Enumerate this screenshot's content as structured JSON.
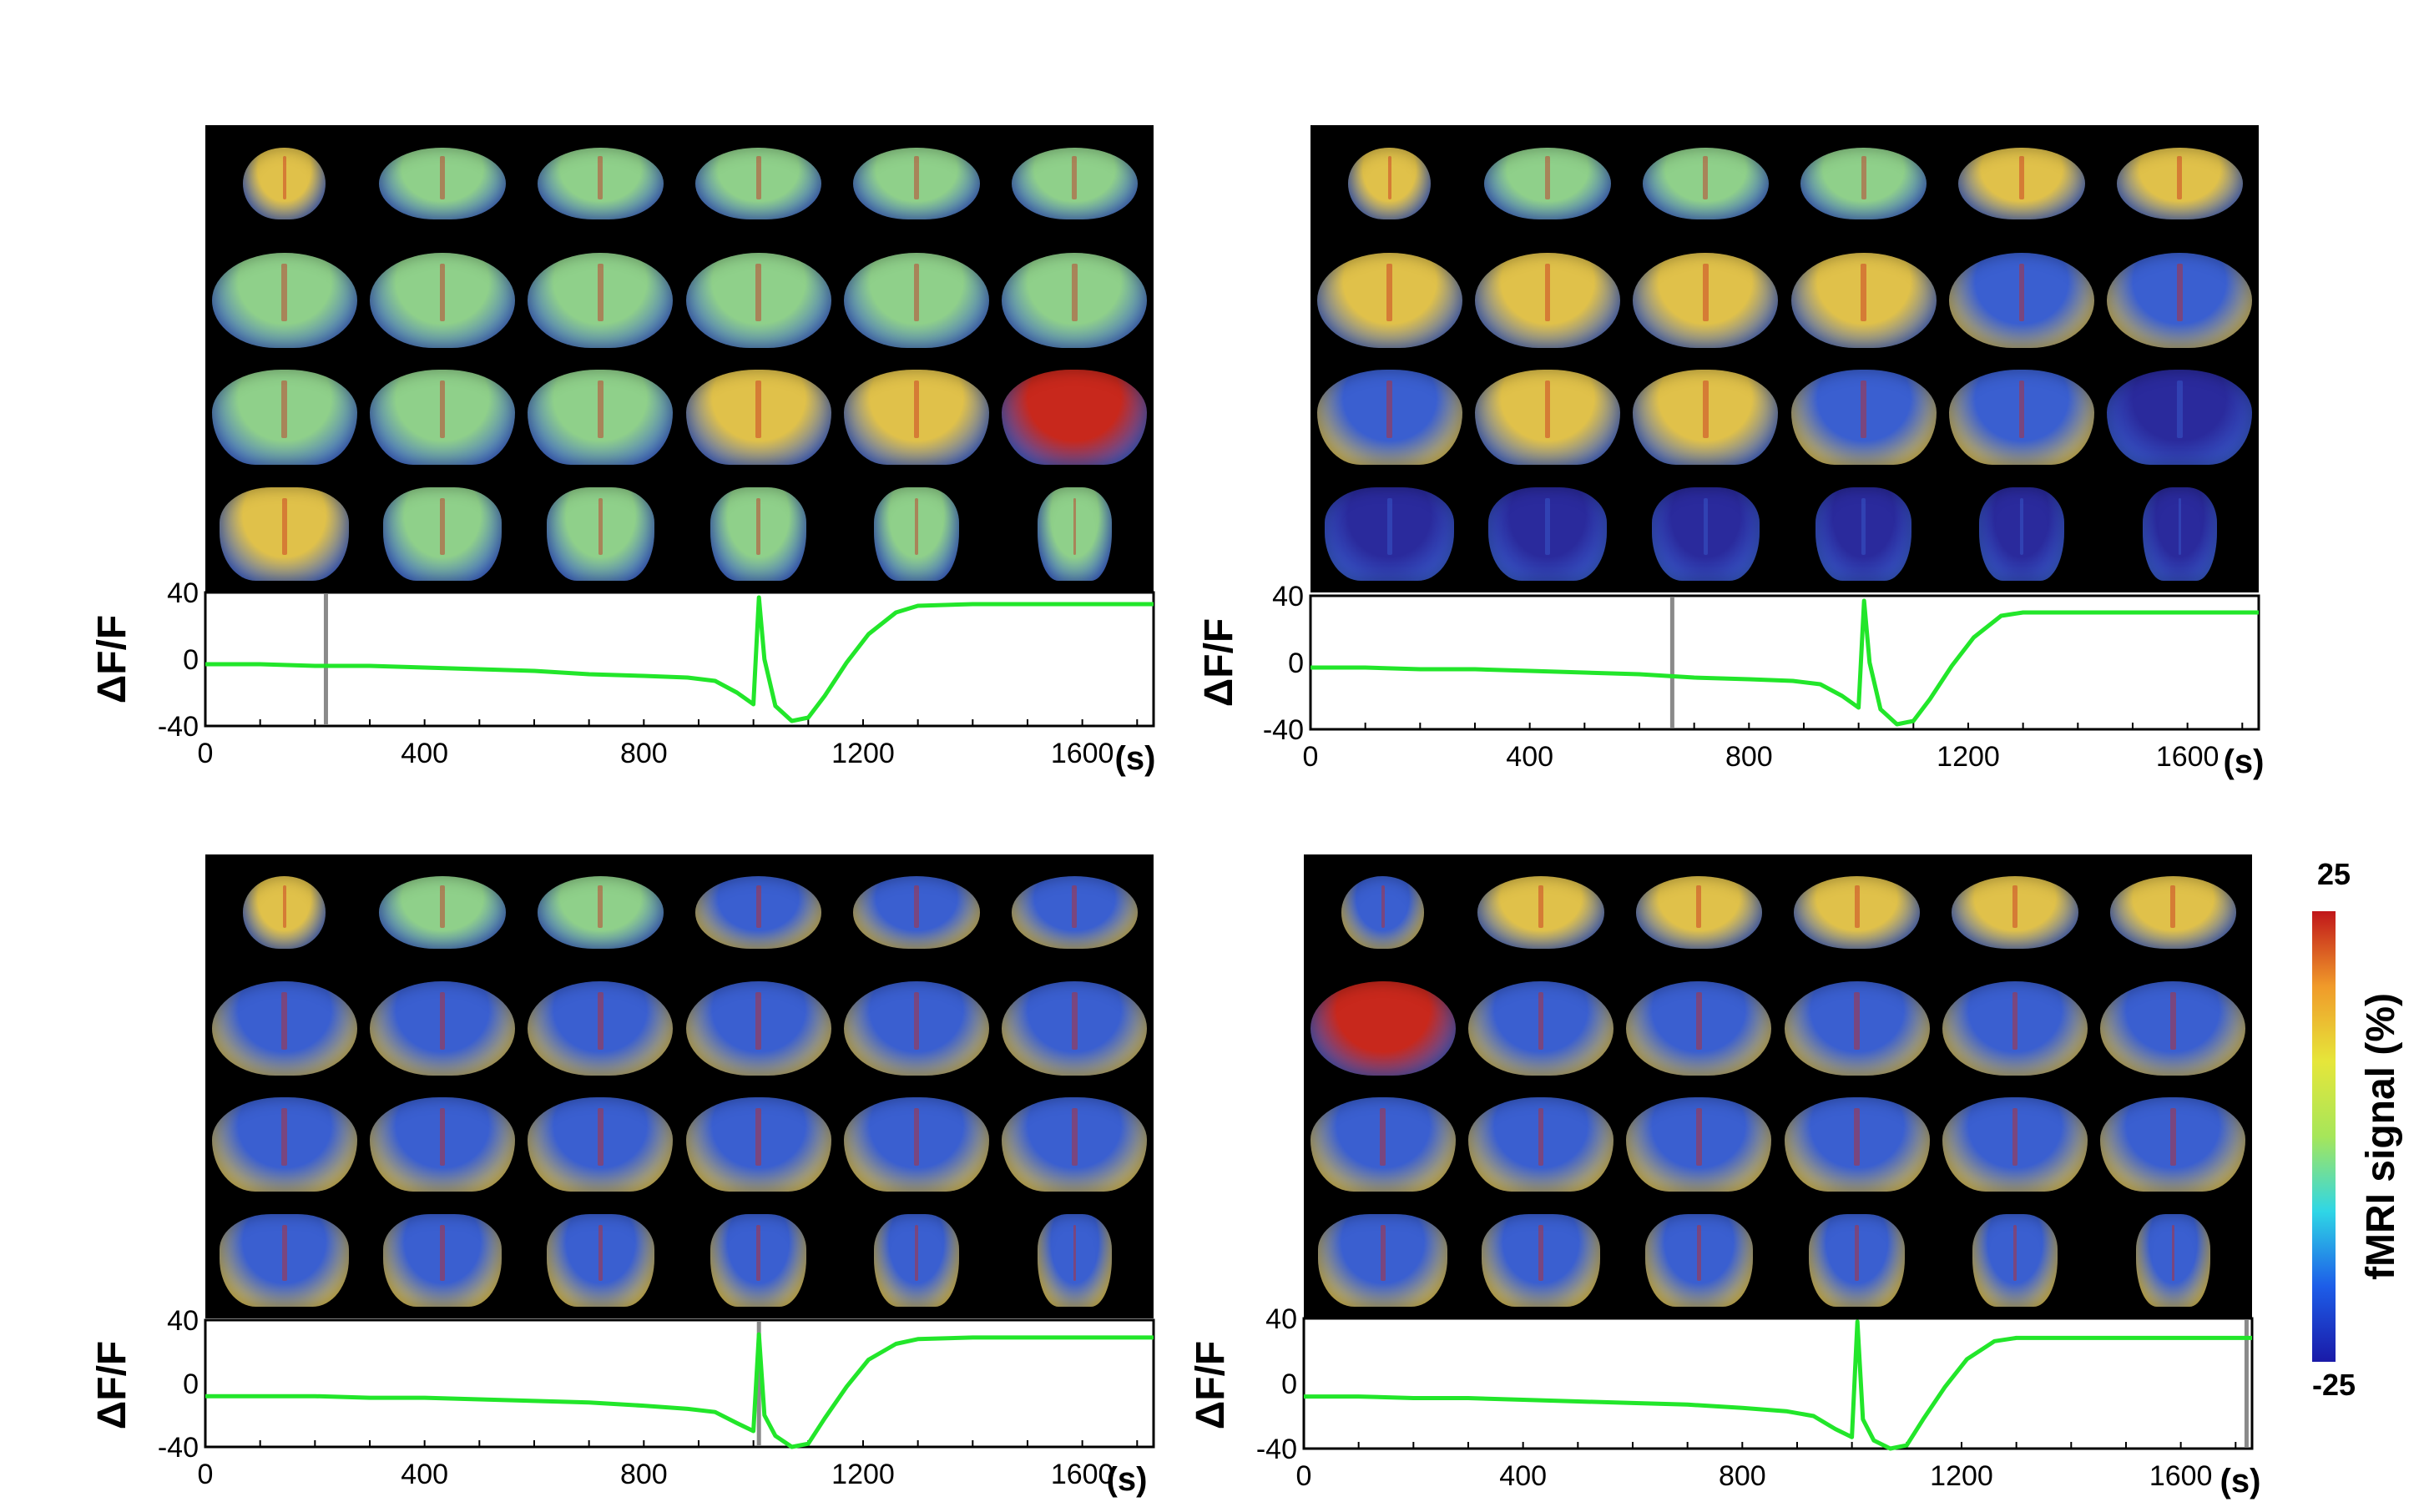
{
  "colorbar": {
    "max_label": "25",
    "min_label": "-25",
    "label": "fMRI signal (%)",
    "min": -25,
    "max": 25,
    "colors": [
      "#1a1aa8",
      "#1d5de8",
      "#2fd6e6",
      "#a6e65a",
      "#e6e63a",
      "#f09a2a",
      "#c0161a"
    ]
  },
  "brain_colors": {
    "background": "#000000",
    "warm": "#e0c14a",
    "neutral": "#8fd08a",
    "cool": "#3a5fd0",
    "deep": "#2a2a9c",
    "hot": "#c8281c"
  },
  "trace_colors": {
    "line": "#22e62a",
    "marker": "#8a8a8a",
    "frame": "#000000"
  },
  "chart_data": [
    {
      "type": "line",
      "panel": "top-left",
      "ylabel": "ΔF/F",
      "xunit": "(s)",
      "xlim": [
        0,
        1730
      ],
      "ylim": [
        -40,
        40
      ],
      "xticks": [
        0,
        400,
        800,
        1200,
        1600
      ],
      "yticks": [
        40,
        0,
        -40
      ],
      "marker_x": 220,
      "brain_slice_tint": [
        [
          "warm",
          "neutral",
          "neutral",
          "neutral",
          "neutral",
          "neutral"
        ],
        [
          "neutral",
          "neutral",
          "neutral",
          "neutral",
          "neutral",
          "neutral"
        ],
        [
          "neutral",
          "neutral",
          "neutral",
          "warm",
          "warm",
          "hot"
        ],
        [
          "warm",
          "neutral",
          "neutral",
          "neutral",
          "neutral",
          "neutral"
        ]
      ],
      "series": [
        {
          "x": [
            0,
            100,
            200,
            300,
            400,
            500,
            600,
            700,
            800,
            880,
            930,
            970,
            1000,
            1010,
            1020,
            1040,
            1070,
            1100,
            1130,
            1170,
            1210,
            1260,
            1300,
            1400,
            1500,
            1600,
            1730
          ],
          "y": [
            -3,
            -3,
            -4,
            -4,
            -5,
            -6,
            -7,
            -9,
            -10,
            -11,
            -13,
            -20,
            -27,
            37,
            0,
            -28,
            -37,
            -35,
            -22,
            -2,
            15,
            28,
            32,
            33,
            33,
            33,
            33
          ]
        }
      ]
    },
    {
      "type": "line",
      "panel": "top-right",
      "ylabel": "ΔF/F",
      "xunit": "(s)",
      "xlim": [
        0,
        1730
      ],
      "ylim": [
        -40,
        40
      ],
      "xticks": [
        0,
        400,
        800,
        1200,
        1600
      ],
      "yticks": [
        40,
        0,
        -40
      ],
      "marker_x": 660,
      "brain_slice_tint": [
        [
          "warm",
          "neutral",
          "neutral",
          "neutral",
          "warm",
          "warm"
        ],
        [
          "warm",
          "warm",
          "warm",
          "warm",
          "cool",
          "cool"
        ],
        [
          "cool",
          "warm",
          "warm",
          "cool",
          "cool",
          "deep"
        ],
        [
          "deep",
          "deep",
          "deep",
          "deep",
          "deep",
          "deep"
        ]
      ],
      "series": [
        {
          "x": [
            0,
            100,
            200,
            300,
            400,
            500,
            600,
            700,
            800,
            880,
            930,
            970,
            1000,
            1010,
            1020,
            1040,
            1070,
            1100,
            1130,
            1170,
            1210,
            1260,
            1300,
            1400,
            1500,
            1600,
            1730
          ],
          "y": [
            -3,
            -3,
            -4,
            -4,
            -5,
            -6,
            -7,
            -9,
            -10,
            -11,
            -13,
            -20,
            -27,
            37,
            0,
            -28,
            -37,
            -35,
            -22,
            -2,
            15,
            28,
            30,
            30,
            30,
            30,
            30
          ]
        }
      ]
    },
    {
      "type": "line",
      "panel": "bottom-left",
      "ylabel": "ΔF/F",
      "xunit": "(s)",
      "xlim": [
        0,
        1730
      ],
      "ylim": [
        -40,
        40
      ],
      "xticks": [
        0,
        400,
        800,
        1200,
        1600
      ],
      "yticks": [
        40,
        0,
        -40
      ],
      "marker_x": 1010,
      "brain_slice_tint": [
        [
          "warm",
          "neutral",
          "neutral",
          "cool",
          "cool",
          "cool"
        ],
        [
          "cool",
          "cool",
          "cool",
          "cool",
          "cool",
          "cool"
        ],
        [
          "cool",
          "cool",
          "cool",
          "cool",
          "cool",
          "cool"
        ],
        [
          "cool",
          "cool",
          "cool",
          "cool",
          "cool",
          "cool"
        ]
      ],
      "series": [
        {
          "x": [
            0,
            100,
            200,
            300,
            400,
            500,
            600,
            700,
            800,
            880,
            930,
            970,
            1000,
            1010,
            1020,
            1040,
            1070,
            1100,
            1130,
            1170,
            1210,
            1260,
            1300,
            1400,
            1500,
            1600,
            1730
          ],
          "y": [
            -8,
            -8,
            -8,
            -9,
            -9,
            -10,
            -11,
            -12,
            -14,
            -16,
            -18,
            -25,
            -30,
            31,
            -20,
            -33,
            -40,
            -38,
            -22,
            -2,
            15,
            25,
            28,
            29,
            29,
            29,
            29
          ]
        }
      ]
    },
    {
      "type": "line",
      "panel": "bottom-right",
      "ylabel": "ΔF/F",
      "xunit": "(s)",
      "xlim": [
        0,
        1730
      ],
      "ylim": [
        -40,
        40
      ],
      "xticks": [
        0,
        400,
        800,
        1200,
        1600
      ],
      "yticks": [
        40,
        0,
        -40
      ],
      "marker_x": 1720,
      "brain_slice_tint": [
        [
          "cool",
          "warm",
          "warm",
          "warm",
          "warm",
          "warm"
        ],
        [
          "hot",
          "cool",
          "cool",
          "cool",
          "cool",
          "cool"
        ],
        [
          "cool",
          "cool",
          "cool",
          "cool",
          "cool",
          "cool"
        ],
        [
          "cool",
          "cool",
          "cool",
          "cool",
          "cool",
          "cool"
        ]
      ],
      "series": [
        {
          "x": [
            0,
            100,
            200,
            300,
            400,
            500,
            600,
            700,
            800,
            880,
            930,
            970,
            1000,
            1010,
            1020,
            1040,
            1070,
            1100,
            1130,
            1170,
            1210,
            1260,
            1300,
            1400,
            1500,
            1600,
            1730
          ],
          "y": [
            -8,
            -8,
            -9,
            -9,
            -10,
            -11,
            -12,
            -13,
            -15,
            -17,
            -20,
            -28,
            -33,
            38,
            -22,
            -35,
            -40,
            -38,
            -22,
            -2,
            15,
            26,
            28,
            28,
            28,
            28,
            28
          ]
        }
      ]
    }
  ]
}
